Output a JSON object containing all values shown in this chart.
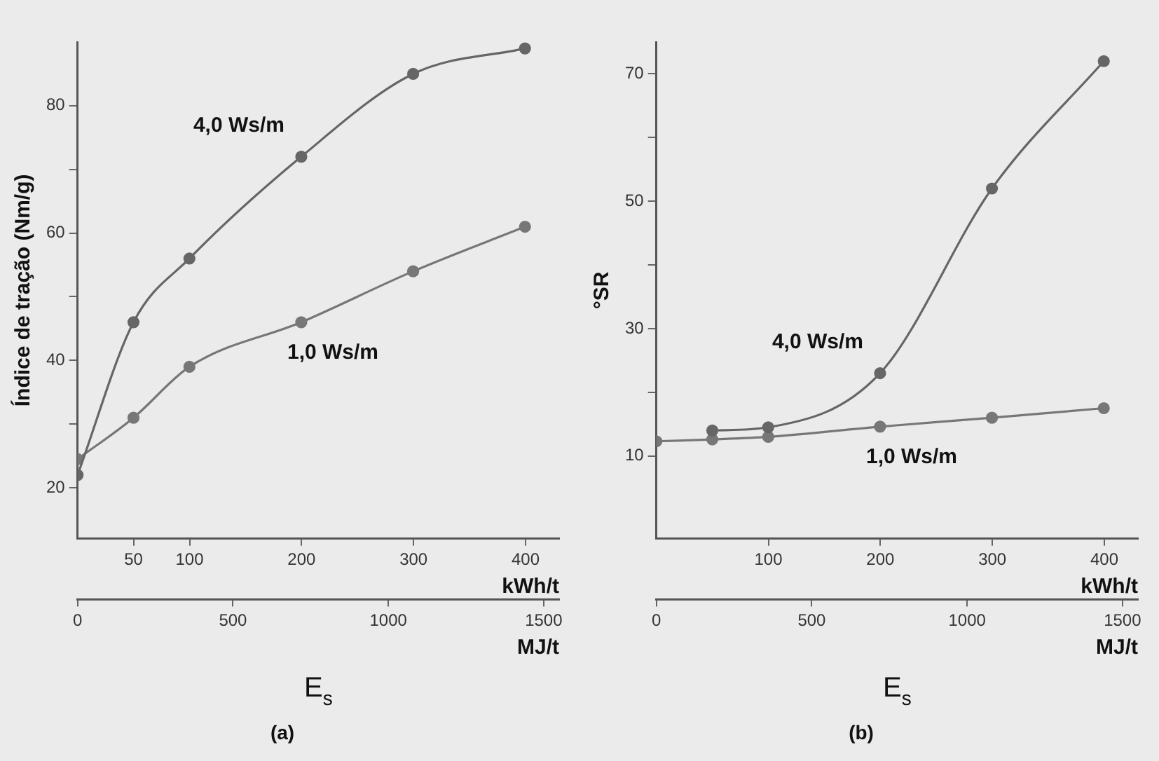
{
  "chart_data": [
    {
      "type": "line",
      "title": "(a)",
      "xlabel": "MJ/t",
      "x2label": "kWh/t",
      "ylabel": "Índice de tração (Nm/g)",
      "annotations": [
        "E$_{s}$"
      ],
      "marker": "circle",
      "grid": false,
      "legend": false,
      "xlim": [
        0,
        1550
      ],
      "xticks": [
        0,
        500,
        1000,
        1500
      ],
      "x2lim": [
        0,
        430
      ],
      "x2ticks": [
        50,
        100,
        200,
        300,
        400
      ],
      "ylim": [
        12,
        90
      ],
      "yticks": [
        20,
        {
          "value": 30,
          "label": null
        },
        40,
        {
          "value": 50,
          "label": null
        },
        60,
        {
          "value": 70,
          "label": null
        },
        80
      ],
      "series": [
        {
          "name": "4,0 Ws/m",
          "color": "#666666",
          "x": [
            0,
            180,
            360,
            720,
            1080,
            1440
          ],
          "values": [
            22,
            46,
            56,
            72,
            85,
            89
          ]
        },
        {
          "name": "1,0 Ws/m",
          "color": "#777777",
          "x": [
            0,
            180,
            360,
            720,
            1080,
            1440
          ],
          "values": [
            24.5,
            31,
            39,
            46,
            54,
            61
          ]
        }
      ]
    },
    {
      "type": "line",
      "title": "(b)",
      "xlabel": "MJ/t",
      "x2label": "kWh/t",
      "ylabel": "°SR",
      "annotations": [
        "E$_{s}$"
      ],
      "marker": "circle",
      "grid": false,
      "legend": false,
      "xlim": [
        0,
        1550
      ],
      "xticks": [
        0,
        500,
        1000,
        1500
      ],
      "x2lim": [
        0,
        430
      ],
      "x2ticks": [
        100,
        200,
        300,
        400
      ],
      "ylim": [
        -3,
        75
      ],
      "yticks": [
        10,
        {
          "value": 20,
          "label": null
        },
        30,
        {
          "value": 40,
          "label": null
        },
        50,
        {
          "value": 60,
          "label": null
        },
        70
      ],
      "series": [
        {
          "name": "4,0 Ws/m",
          "color": "#666666",
          "x": [
            180,
            360,
            720,
            1080,
            1440
          ],
          "values": [
            14,
            14.5,
            23,
            52,
            72
          ]
        },
        {
          "name": "1,0 Ws/m",
          "color": "#777777",
          "x": [
            0,
            180,
            360,
            720,
            1080,
            1440
          ],
          "values": [
            12.3,
            12.6,
            13,
            14.6,
            16,
            17.5
          ]
        }
      ]
    }
  ]
}
